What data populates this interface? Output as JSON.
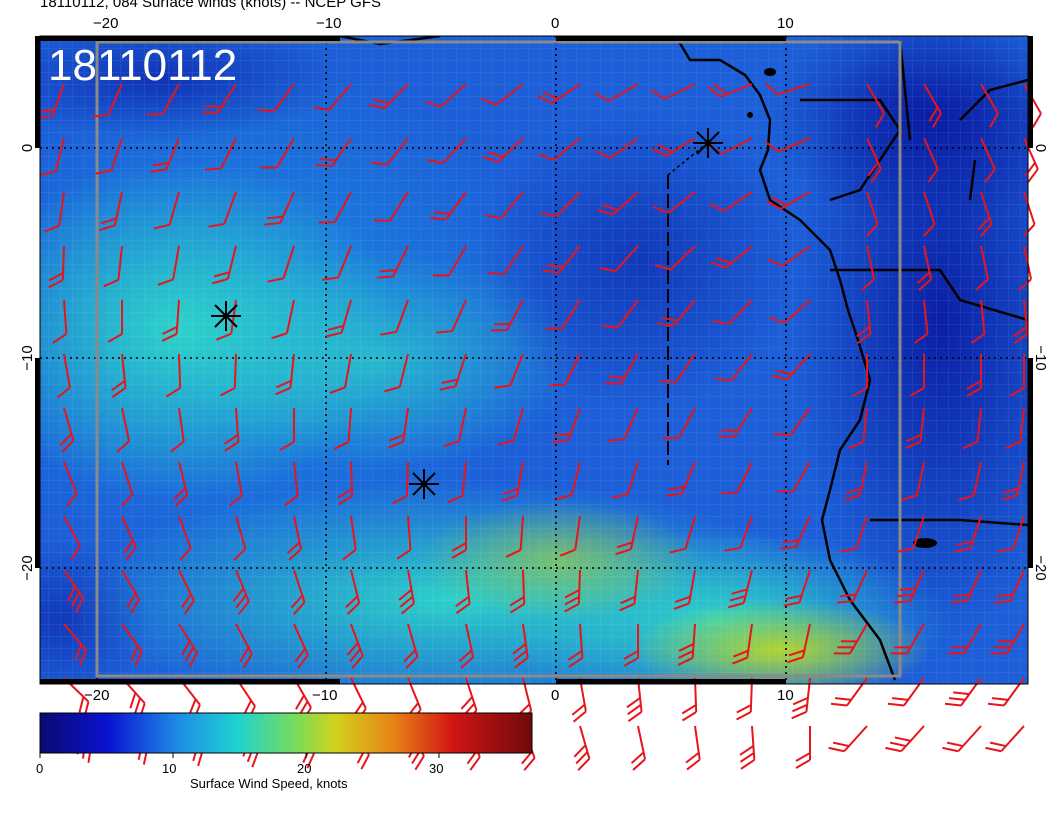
{
  "title": "18110112, 084 Surface winds (knots) -- NCEP GFS",
  "stamp": "18110112",
  "top_lon_labels": [
    "−20",
    "−10",
    "0",
    "10"
  ],
  "bottom_lon_labels": [
    "−20",
    "−10",
    "0",
    "10"
  ],
  "left_lat_labels": [
    "0",
    "−10",
    "−20"
  ],
  "right_lat_labels": [
    "0",
    "−10",
    "−20"
  ],
  "colorbar": {
    "ticks": [
      "0",
      "10",
      "20",
      "30"
    ],
    "label": "Surface Wind Speed, knots"
  },
  "colors": {
    "barb": "#e8141c",
    "grid": "#000000",
    "coast": "#000000",
    "low_speed": "#0a1ea0",
    "mid_speed": "#1ec8c8",
    "high_speed": "#c8d21e"
  },
  "markers": [
    "asterisk-marker",
    "asterisk-marker",
    "asterisk-marker"
  ]
}
